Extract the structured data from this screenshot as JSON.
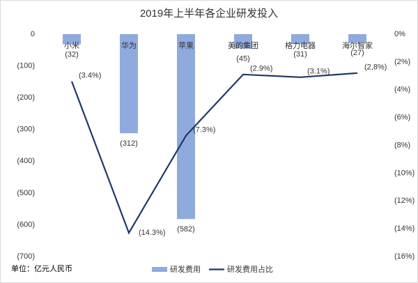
{
  "chart_data": {
    "type": "bar",
    "title": "2019年上半年各企业研发投入",
    "note": "单位：亿元人民币",
    "categories": [
      "小米",
      "华为",
      "苹果",
      "美的集团",
      "格力电器",
      "海尔智家"
    ],
    "series": [
      {
        "name": "研发费用",
        "type": "bar",
        "color": "#8faadc",
        "values": [
          -32,
          -312,
          -582,
          -45,
          -31,
          -27
        ],
        "value_labels": [
          "(32)",
          "(312)",
          "(582)",
          "(45)",
          "(31)",
          "(27)"
        ]
      },
      {
        "name": "研发费用占比",
        "type": "line",
        "axis": "y2",
        "color": "#1f3864",
        "values": [
          -3.4,
          -14.3,
          -7.3,
          -2.9,
          -3.1,
          -2.8
        ],
        "value_labels": [
          "(3.4%)",
          "(14.3%)",
          "(7.3%)",
          "(2.9%)",
          "(3.1%)",
          "(2,8%)"
        ]
      }
    ],
    "ylim": [
      0,
      -700
    ],
    "yticks": [
      0,
      {
        "value": -100,
        "label": "(100)"
      },
      {
        "value": -200,
        "label": "(200)"
      },
      {
        "value": -300,
        "label": "(300)"
      },
      {
        "value": -400,
        "label": "(400)"
      },
      {
        "value": -500,
        "label": "(500)"
      },
      {
        "value": -600,
        "label": "(600)"
      },
      {
        "value": -700,
        "label": "(700)"
      }
    ],
    "y2lim": [
      0,
      -16
    ],
    "y2ticks": [
      {
        "value": 0,
        "label": "0%"
      },
      {
        "value": -2,
        "label": "(2%)"
      },
      {
        "value": -4,
        "label": "(4%)"
      },
      {
        "value": -6,
        "label": "(6%)"
      },
      {
        "value": -8,
        "label": "(8%)"
      },
      {
        "value": -10,
        "label": "(10%)"
      },
      {
        "value": -12,
        "label": "(12%)"
      },
      {
        "value": -14,
        "label": "(14%)"
      },
      {
        "value": -16,
        "label": "(16%)"
      }
    ],
    "negative_color": "#e00000"
  }
}
